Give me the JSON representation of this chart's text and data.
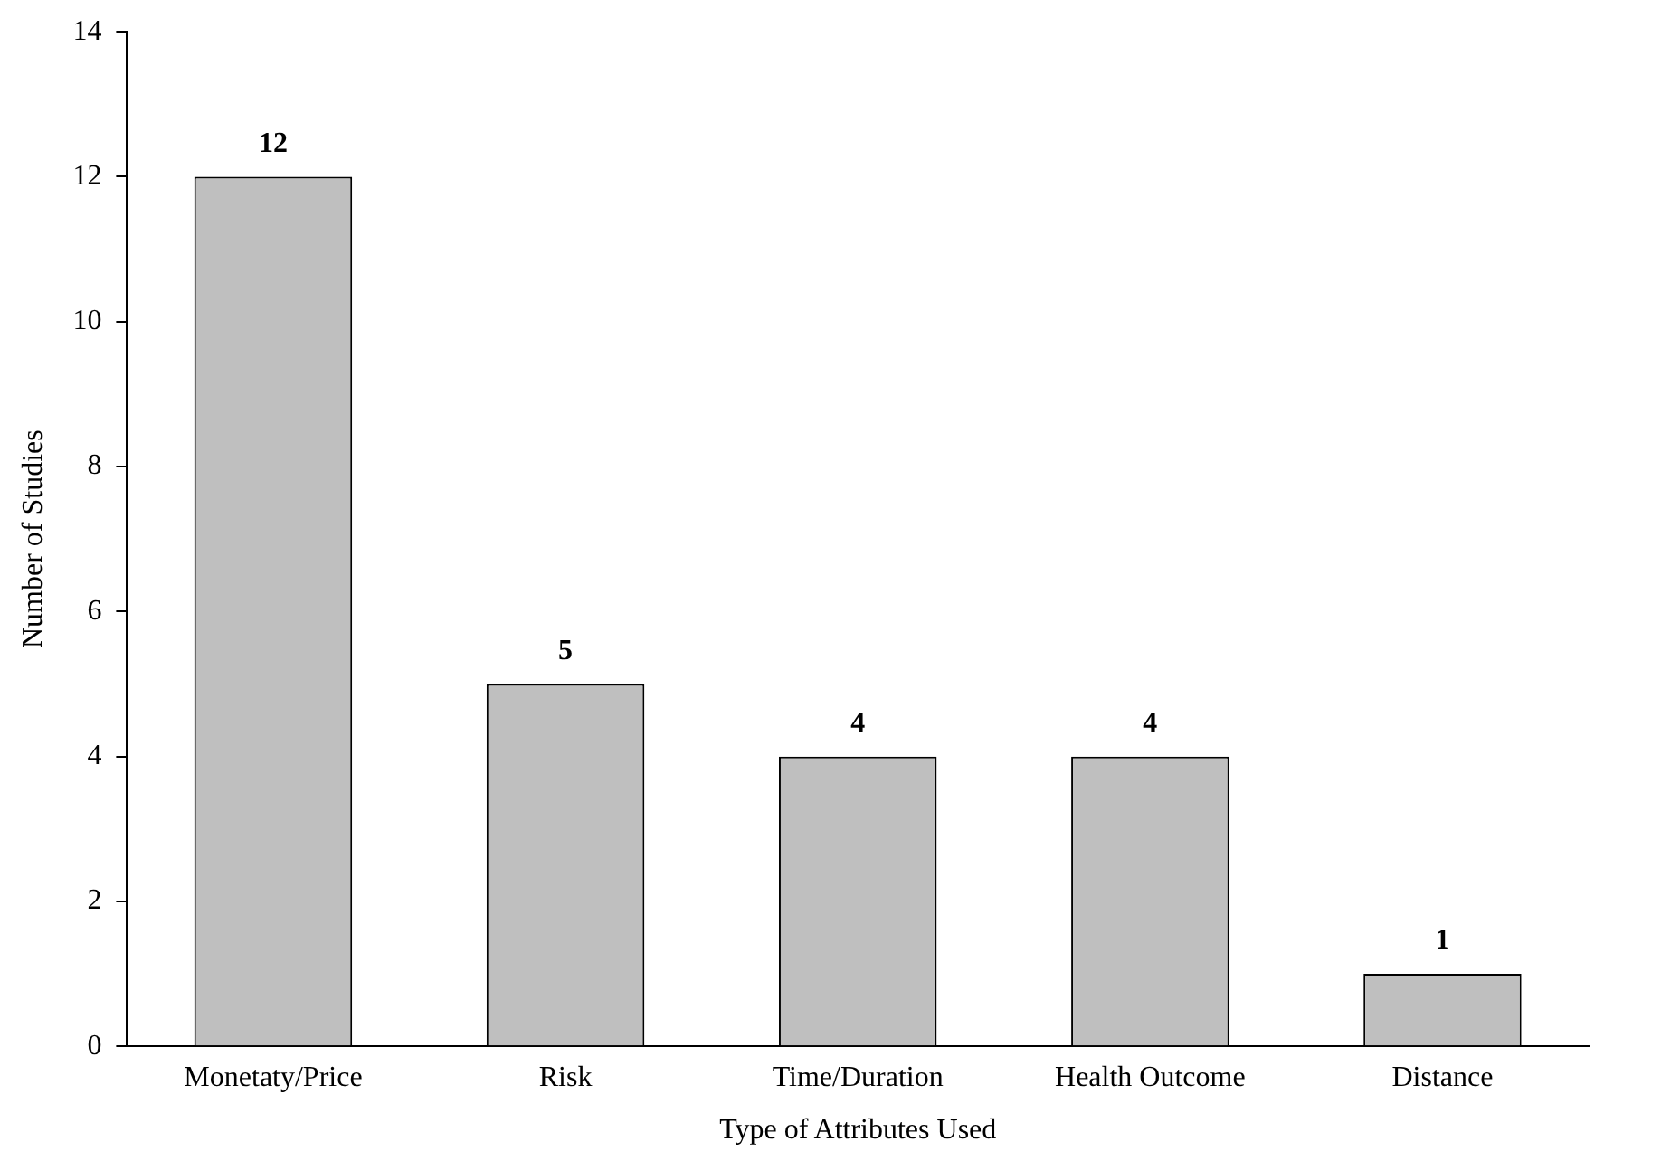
{
  "chart_data": {
    "type": "bar",
    "categories": [
      "Monetaty/Price",
      "Risk",
      "Time/Duration",
      "Health Outcome",
      "Distance"
    ],
    "values": [
      12,
      5,
      4,
      4,
      1
    ],
    "color": "#bfbfbf",
    "xlabel": "Type of Attributes Used",
    "ylabel": "Number of Studies",
    "ylim": [
      0,
      14
    ],
    "yticks": [
      0,
      2,
      4,
      6,
      8,
      10,
      12,
      14
    ],
    "data_labels": true
  }
}
